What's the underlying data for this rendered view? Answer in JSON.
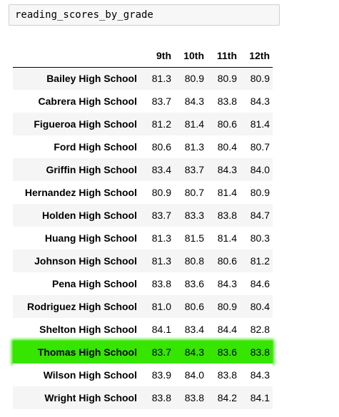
{
  "code_cell": {
    "source": "reading_scores_by_grade"
  },
  "table": {
    "index_header": "",
    "columns": [
      "9th",
      "10th",
      "11th",
      "12th"
    ],
    "rows": [
      {
        "school": "Bailey High School",
        "values": [
          "81.3",
          "80.9",
          "80.9",
          "80.9"
        ]
      },
      {
        "school": "Cabrera High School",
        "values": [
          "83.7",
          "84.3",
          "83.8",
          "84.3"
        ]
      },
      {
        "school": "Figueroa High School",
        "values": [
          "81.2",
          "81.4",
          "80.6",
          "81.4"
        ]
      },
      {
        "school": "Ford High School",
        "values": [
          "80.6",
          "81.3",
          "80.4",
          "80.7"
        ]
      },
      {
        "school": "Griffin High School",
        "values": [
          "83.4",
          "83.7",
          "84.3",
          "84.0"
        ]
      },
      {
        "school": "Hernandez High School",
        "values": [
          "80.9",
          "80.7",
          "81.4",
          "80.9"
        ]
      },
      {
        "school": "Holden High School",
        "values": [
          "83.7",
          "83.3",
          "83.8",
          "84.7"
        ]
      },
      {
        "school": "Huang High School",
        "values": [
          "81.3",
          "81.5",
          "81.4",
          "80.3"
        ]
      },
      {
        "school": "Johnson High School",
        "values": [
          "81.3",
          "80.8",
          "80.6",
          "81.2"
        ]
      },
      {
        "school": "Pena High School",
        "values": [
          "83.8",
          "83.6",
          "84.3",
          "84.6"
        ]
      },
      {
        "school": "Rodriguez High School",
        "values": [
          "81.0",
          "80.6",
          "80.9",
          "80.4"
        ]
      },
      {
        "school": "Shelton High School",
        "values": [
          "84.1",
          "83.4",
          "84.4",
          "82.8"
        ]
      },
      {
        "school": "Thomas High School",
        "values": [
          "83.7",
          "84.3",
          "83.6",
          "83.8"
        ],
        "highlighted": true
      },
      {
        "school": "Wilson High School",
        "values": [
          "83.9",
          "84.0",
          "83.8",
          "84.3"
        ]
      },
      {
        "school": "Wright High School",
        "values": [
          "83.8",
          "83.8",
          "84.2",
          "84.1"
        ]
      }
    ]
  },
  "colors": {
    "highlight": "#36e500",
    "stripe": "#f5f5f5",
    "code_background": "#f7f7f7"
  }
}
